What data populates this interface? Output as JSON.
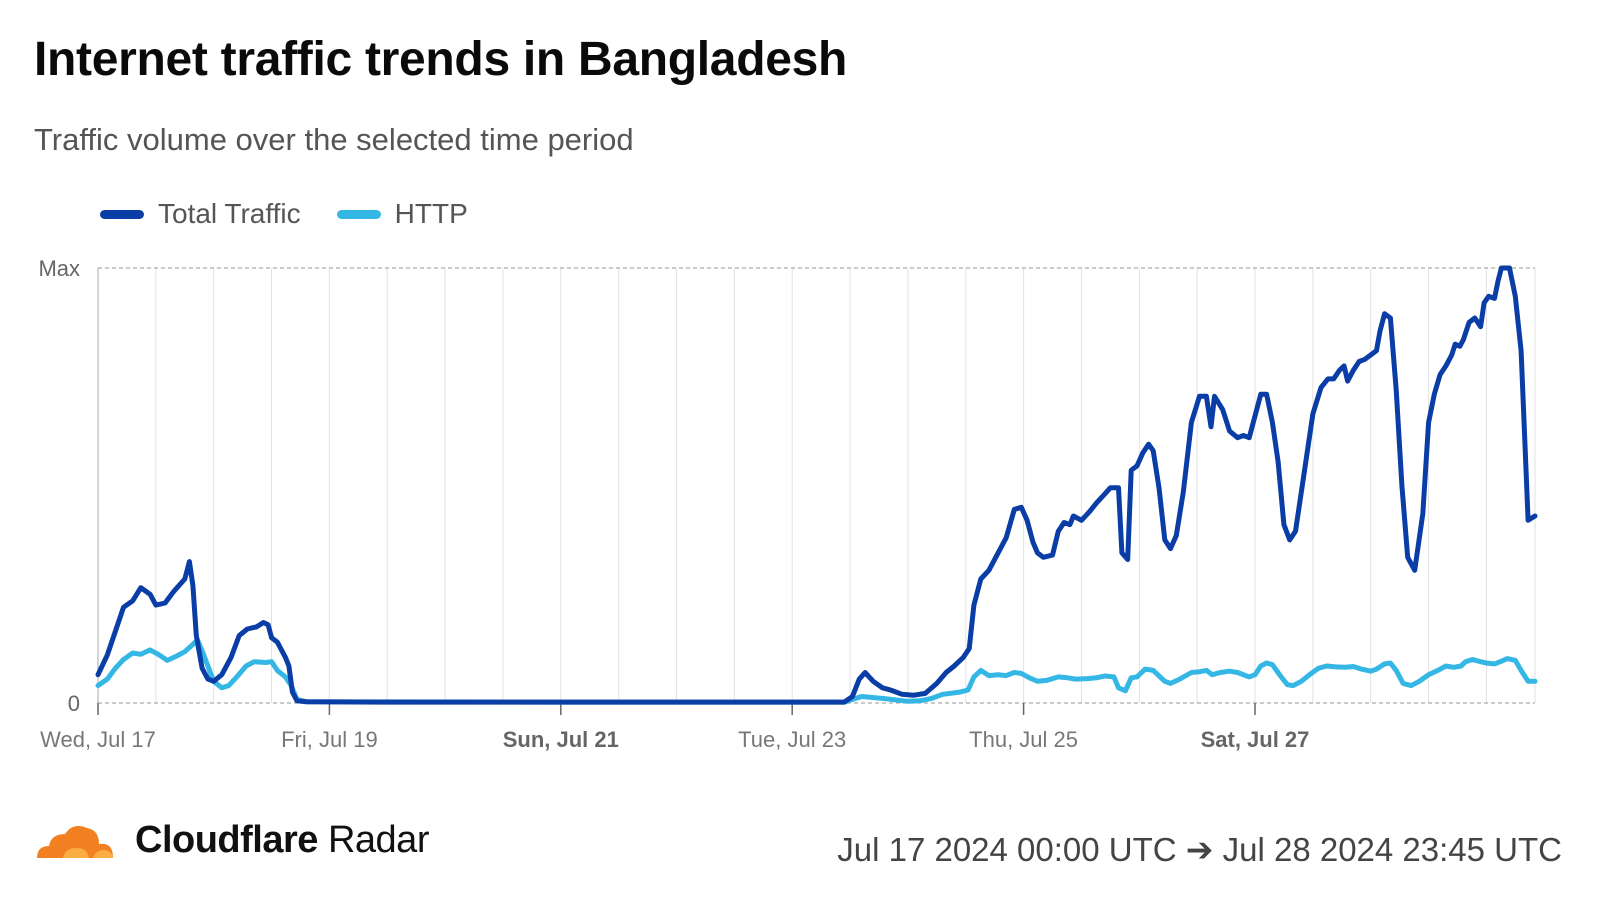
{
  "header": {
    "title": "Internet traffic trends in Bangladesh",
    "subtitle": "Traffic volume over the selected time period"
  },
  "footer": {
    "brand_bold": "Cloudflare",
    "brand_light": "Radar",
    "date_range": "Jul 17 2024 00:00 UTC ➔ Jul 28 2024 23:45 UTC"
  },
  "colors": {
    "total": "#0a3ea6",
    "http": "#35b7e5",
    "grid": "#e2e2e2",
    "axis": "#aaaaaa",
    "logo": "#f38020"
  },
  "chart_data": {
    "type": "line",
    "title": "Internet traffic trends in Bangladesh",
    "subtitle": "Traffic volume over the selected time period",
    "x_range_days": [
      0,
      11.95
    ],
    "x_start": "Jul 17 2024",
    "ylim": [
      0,
      1
    ],
    "y_ticks": [
      {
        "label": "0",
        "value": 0
      },
      {
        "label": "Max",
        "value": 1
      }
    ],
    "x_ticks": [
      {
        "label": "Wed, Jul 17",
        "day": 0,
        "bold": false
      },
      {
        "label": "Fri, Jul 19",
        "day": 2,
        "bold": false
      },
      {
        "label": "Sun, Jul 21",
        "day": 4,
        "bold": true
      },
      {
        "label": "Tue, Jul 23",
        "day": 6,
        "bold": false
      },
      {
        "label": "Thu, Jul 25",
        "day": 8,
        "bold": false
      },
      {
        "label": "Sat, Jul 27",
        "day": 10,
        "bold": true
      }
    ],
    "grid": true,
    "legend": "top-left",
    "series": [
      {
        "name": "Total Traffic",
        "points": [
          [
            0,
            0.065
          ],
          [
            0.08,
            0.11
          ],
          [
            0.15,
            0.165
          ],
          [
            0.22,
            0.22
          ],
          [
            0.3,
            0.235
          ],
          [
            0.37,
            0.265
          ],
          [
            0.45,
            0.25
          ],
          [
            0.5,
            0.225
          ],
          [
            0.58,
            0.23
          ],
          [
            0.65,
            0.255
          ],
          [
            0.7,
            0.27
          ],
          [
            0.75,
            0.285
          ],
          [
            0.79,
            0.325
          ],
          [
            0.82,
            0.27
          ],
          [
            0.85,
            0.155
          ],
          [
            0.9,
            0.08
          ],
          [
            0.95,
            0.055
          ],
          [
            1.0,
            0.05
          ],
          [
            1.07,
            0.065
          ],
          [
            1.15,
            0.105
          ],
          [
            1.22,
            0.155
          ],
          [
            1.29,
            0.17
          ],
          [
            1.37,
            0.175
          ],
          [
            1.43,
            0.185
          ],
          [
            1.47,
            0.18
          ],
          [
            1.5,
            0.15
          ],
          [
            1.55,
            0.14
          ],
          [
            1.62,
            0.105
          ],
          [
            1.65,
            0.085
          ],
          [
            1.68,
            0.025
          ],
          [
            1.72,
            0.005
          ],
          [
            1.8,
            0.003
          ],
          [
            2.5,
            0.002
          ],
          [
            4.0,
            0.002
          ],
          [
            6.0,
            0.002
          ],
          [
            6.45,
            0.002
          ],
          [
            6.52,
            0.015
          ],
          [
            6.58,
            0.055
          ],
          [
            6.63,
            0.07
          ],
          [
            6.7,
            0.05
          ],
          [
            6.78,
            0.035
          ],
          [
            6.85,
            0.03
          ],
          [
            6.95,
            0.02
          ],
          [
            7.05,
            0.018
          ],
          [
            7.15,
            0.022
          ],
          [
            7.25,
            0.045
          ],
          [
            7.33,
            0.07
          ],
          [
            7.4,
            0.085
          ],
          [
            7.48,
            0.105
          ],
          [
            7.53,
            0.125
          ],
          [
            7.57,
            0.225
          ],
          [
            7.63,
            0.285
          ],
          [
            7.7,
            0.305
          ],
          [
            7.78,
            0.345
          ],
          [
            7.85,
            0.38
          ],
          [
            7.92,
            0.445
          ],
          [
            7.98,
            0.45
          ],
          [
            8.03,
            0.42
          ],
          [
            8.08,
            0.37
          ],
          [
            8.12,
            0.345
          ],
          [
            8.17,
            0.335
          ],
          [
            8.25,
            0.34
          ],
          [
            8.3,
            0.395
          ],
          [
            8.35,
            0.415
          ],
          [
            8.4,
            0.41
          ],
          [
            8.43,
            0.43
          ],
          [
            8.5,
            0.42
          ],
          [
            8.57,
            0.44
          ],
          [
            8.63,
            0.46
          ],
          [
            8.7,
            0.48
          ],
          [
            8.75,
            0.495
          ],
          [
            8.82,
            0.495
          ],
          [
            8.85,
            0.345
          ],
          [
            8.9,
            0.33
          ],
          [
            8.93,
            0.535
          ],
          [
            8.98,
            0.545
          ],
          [
            9.03,
            0.575
          ],
          [
            9.08,
            0.595
          ],
          [
            9.12,
            0.58
          ],
          [
            9.17,
            0.495
          ],
          [
            9.22,
            0.375
          ],
          [
            9.27,
            0.355
          ],
          [
            9.32,
            0.385
          ],
          [
            9.38,
            0.485
          ],
          [
            9.45,
            0.645
          ],
          [
            9.52,
            0.705
          ],
          [
            9.58,
            0.705
          ],
          [
            9.62,
            0.635
          ],
          [
            9.65,
            0.705
          ],
          [
            9.72,
            0.675
          ],
          [
            9.78,
            0.625
          ],
          [
            9.85,
            0.61
          ],
          [
            9.9,
            0.615
          ],
          [
            9.95,
            0.61
          ],
          [
            9.98,
            0.64
          ],
          [
            10.05,
            0.71
          ],
          [
            10.1,
            0.71
          ],
          [
            10.15,
            0.645
          ],
          [
            10.2,
            0.555
          ],
          [
            10.25,
            0.41
          ],
          [
            10.3,
            0.375
          ],
          [
            10.35,
            0.395
          ],
          [
            10.42,
            0.52
          ],
          [
            10.5,
            0.665
          ],
          [
            10.57,
            0.725
          ],
          [
            10.63,
            0.745
          ],
          [
            10.68,
            0.745
          ],
          [
            10.73,
            0.765
          ],
          [
            10.77,
            0.775
          ],
          [
            10.8,
            0.74
          ],
          [
            10.85,
            0.765
          ],
          [
            10.9,
            0.785
          ],
          [
            10.95,
            0.79
          ],
          [
            11.0,
            0.8
          ],
          [
            11.05,
            0.81
          ],
          [
            11.08,
            0.855
          ],
          [
            11.12,
            0.895
          ],
          [
            11.17,
            0.885
          ],
          [
            11.22,
            0.72
          ],
          [
            11.27,
            0.5
          ],
          [
            11.32,
            0.335
          ],
          [
            11.38,
            0.305
          ],
          [
            11.45,
            0.435
          ],
          [
            11.5,
            0.645
          ],
          [
            11.55,
            0.71
          ],
          [
            11.6,
            0.755
          ],
          [
            11.65,
            0.775
          ],
          [
            11.7,
            0.8
          ],
          [
            11.73,
            0.825
          ],
          [
            11.77,
            0.82
          ],
          [
            11.8,
            0.835
          ],
          [
            11.85,
            0.875
          ],
          [
            11.9,
            0.885
          ],
          [
            11.95,
            0.865
          ],
          [
            11.98,
            0.92
          ],
          [
            12.02,
            0.935
          ],
          [
            12.07,
            0.93
          ],
          [
            12.1,
            0.97
          ],
          [
            12.13,
            1.0
          ],
          [
            12.2,
            1.0
          ],
          [
            12.25,
            0.935
          ],
          [
            12.3,
            0.81
          ],
          [
            12.36,
            0.42
          ],
          [
            12.42,
            0.43
          ]
        ]
      },
      {
        "name": "HTTP",
        "points": [
          [
            0,
            0.04
          ],
          [
            0.08,
            0.055
          ],
          [
            0.15,
            0.08
          ],
          [
            0.22,
            0.1
          ],
          [
            0.3,
            0.115
          ],
          [
            0.37,
            0.112
          ],
          [
            0.45,
            0.122
          ],
          [
            0.52,
            0.112
          ],
          [
            0.6,
            0.098
          ],
          [
            0.68,
            0.108
          ],
          [
            0.75,
            0.118
          ],
          [
            0.82,
            0.135
          ],
          [
            0.86,
            0.145
          ],
          [
            0.9,
            0.12
          ],
          [
            0.95,
            0.085
          ],
          [
            1.0,
            0.05
          ],
          [
            1.07,
            0.035
          ],
          [
            1.13,
            0.04
          ],
          [
            1.2,
            0.06
          ],
          [
            1.28,
            0.085
          ],
          [
            1.35,
            0.095
          ],
          [
            1.45,
            0.093
          ],
          [
            1.5,
            0.095
          ],
          [
            1.55,
            0.075
          ],
          [
            1.62,
            0.06
          ],
          [
            1.67,
            0.04
          ],
          [
            1.72,
            0.008
          ],
          [
            1.8,
            0.003
          ],
          [
            4.0,
            0.002
          ],
          [
            6.0,
            0.002
          ],
          [
            6.45,
            0.002
          ],
          [
            6.6,
            0.015
          ],
          [
            6.8,
            0.01
          ],
          [
            7.0,
            0.004
          ],
          [
            7.1,
            0.005
          ],
          [
            7.2,
            0.01
          ],
          [
            7.3,
            0.02
          ],
          [
            7.45,
            0.025
          ],
          [
            7.52,
            0.03
          ],
          [
            7.57,
            0.06
          ],
          [
            7.63,
            0.075
          ],
          [
            7.7,
            0.063
          ],
          [
            7.78,
            0.065
          ],
          [
            7.85,
            0.063
          ],
          [
            7.92,
            0.07
          ],
          [
            7.98,
            0.068
          ],
          [
            8.05,
            0.058
          ],
          [
            8.12,
            0.05
          ],
          [
            8.2,
            0.052
          ],
          [
            8.3,
            0.06
          ],
          [
            8.38,
            0.058
          ],
          [
            8.45,
            0.055
          ],
          [
            8.55,
            0.056
          ],
          [
            8.63,
            0.058
          ],
          [
            8.7,
            0.062
          ],
          [
            8.78,
            0.06
          ],
          [
            8.82,
            0.035
          ],
          [
            8.88,
            0.028
          ],
          [
            8.93,
            0.058
          ],
          [
            8.98,
            0.06
          ],
          [
            9.05,
            0.078
          ],
          [
            9.12,
            0.075
          ],
          [
            9.18,
            0.06
          ],
          [
            9.22,
            0.05
          ],
          [
            9.27,
            0.045
          ],
          [
            9.35,
            0.055
          ],
          [
            9.45,
            0.07
          ],
          [
            9.52,
            0.072
          ],
          [
            9.58,
            0.075
          ],
          [
            9.63,
            0.065
          ],
          [
            9.7,
            0.07
          ],
          [
            9.78,
            0.073
          ],
          [
            9.85,
            0.07
          ],
          [
            9.95,
            0.06
          ],
          [
            10.0,
            0.065
          ],
          [
            10.05,
            0.085
          ],
          [
            10.1,
            0.092
          ],
          [
            10.15,
            0.088
          ],
          [
            10.22,
            0.062
          ],
          [
            10.28,
            0.042
          ],
          [
            10.33,
            0.04
          ],
          [
            10.4,
            0.05
          ],
          [
            10.48,
            0.067
          ],
          [
            10.55,
            0.08
          ],
          [
            10.62,
            0.085
          ],
          [
            10.7,
            0.083
          ],
          [
            10.78,
            0.082
          ],
          [
            10.85,
            0.084
          ],
          [
            10.92,
            0.078
          ],
          [
            11.0,
            0.073
          ],
          [
            11.05,
            0.078
          ],
          [
            11.12,
            0.09
          ],
          [
            11.17,
            0.092
          ],
          [
            11.22,
            0.075
          ],
          [
            11.28,
            0.045
          ],
          [
            11.35,
            0.04
          ],
          [
            11.42,
            0.05
          ],
          [
            11.5,
            0.065
          ],
          [
            11.58,
            0.075
          ],
          [
            11.65,
            0.085
          ],
          [
            11.72,
            0.082
          ],
          [
            11.78,
            0.085
          ],
          [
            11.82,
            0.095
          ],
          [
            11.88,
            0.1
          ],
          [
            11.95,
            0.095
          ],
          [
            12.0,
            0.092
          ],
          [
            12.07,
            0.09
          ],
          [
            12.12,
            0.095
          ],
          [
            12.18,
            0.102
          ],
          [
            12.25,
            0.098
          ],
          [
            12.3,
            0.075
          ],
          [
            12.36,
            0.05
          ],
          [
            12.42,
            0.05
          ]
        ]
      }
    ]
  }
}
